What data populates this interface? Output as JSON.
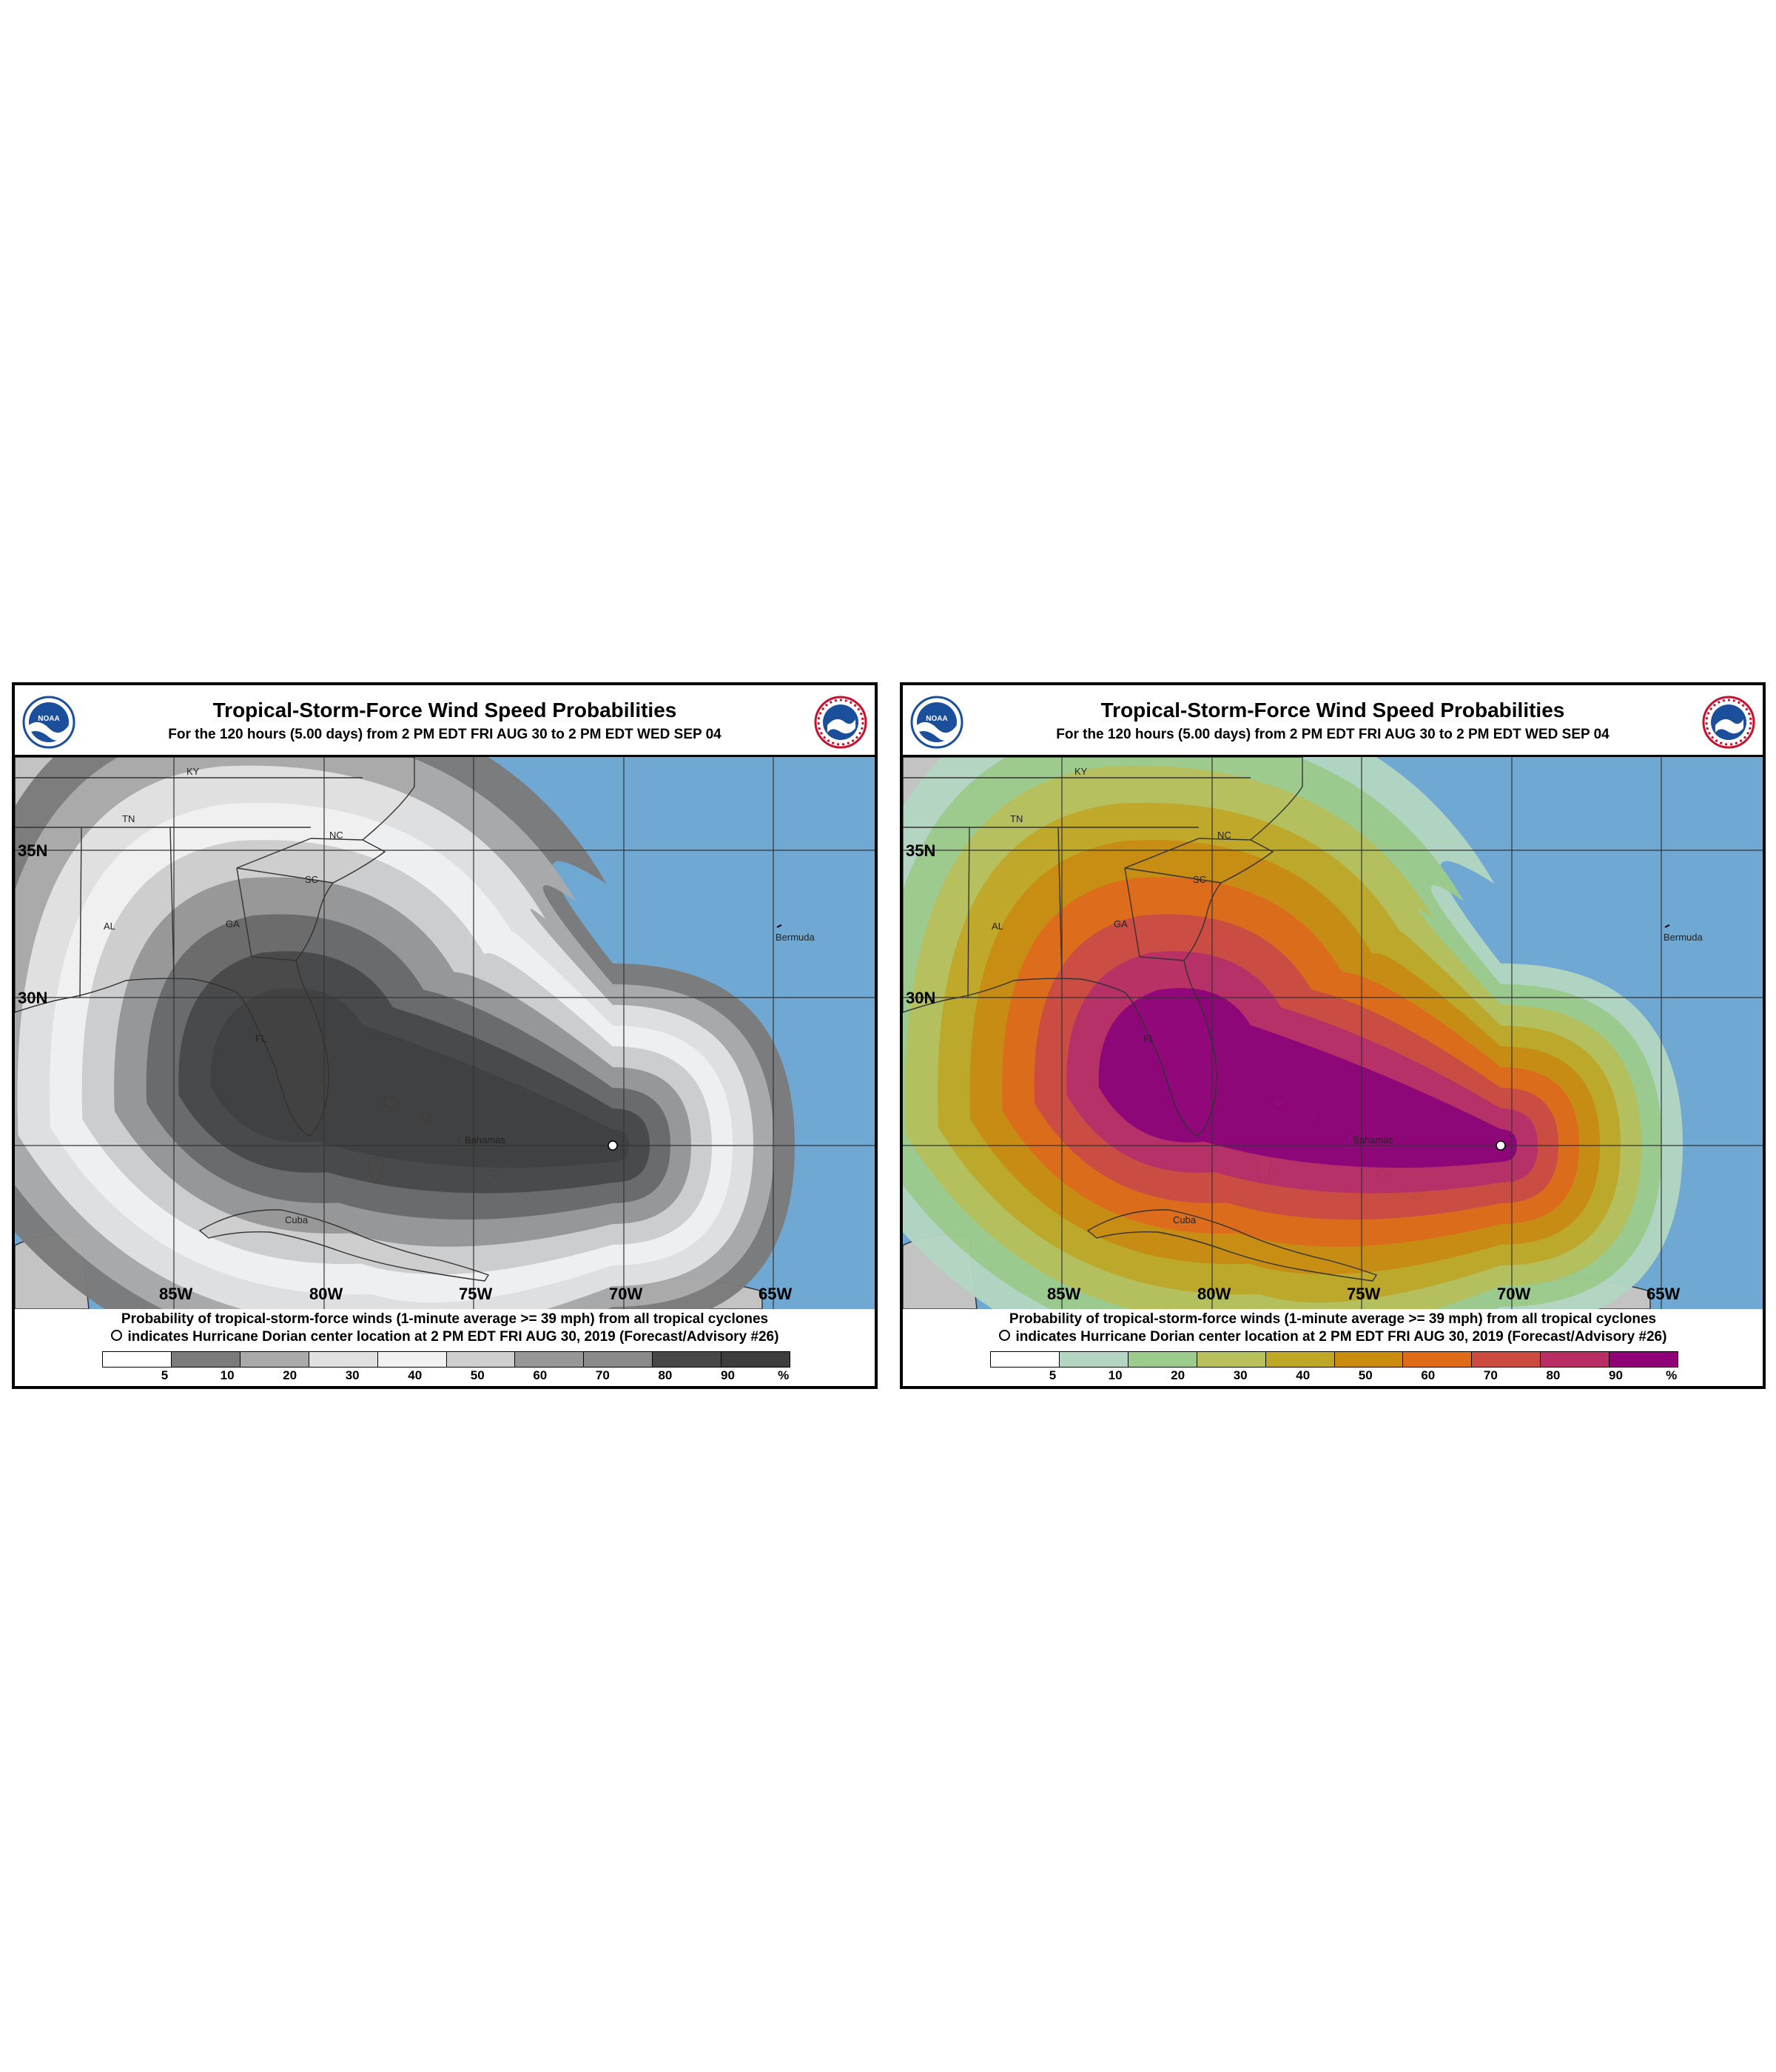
{
  "title": "Tropical-Storm-Force Wind Speed Probabilities",
  "subtitle": "For the 120 hours (5.00 days) from 2 PM EDT FRI AUG 30 to 2 PM EDT WED SEP 04",
  "legend_line1": "Probability of tropical-storm-force winds (1-minute average >= 39 mph) from all tropical cyclones",
  "legend_line2": "indicates Hurricane Dorian center location at 2 PM EDT FRI AUG 30, 2019 (Forecast/Advisory #26)",
  "scale_ticks": [
    "5",
    "10",
    "20",
    "30",
    "40",
    "50",
    "60",
    "70",
    "80",
    "90"
  ],
  "scale_unit": "%",
  "lat_labels": [
    "35N",
    "30N"
  ],
  "lon_labels": [
    "85W",
    "80W",
    "75W",
    "70W",
    "65W"
  ],
  "place_labels": {
    "ky": "KY",
    "tn": "TN",
    "nc": "NC",
    "sc": "SC",
    "ga": "GA",
    "al": "AL",
    "fl": "FL",
    "bahamas": "Bahamas",
    "cuba": "Cuba",
    "bermuda": "Bermuda"
  },
  "colors": {
    "ocean": "#6fa8d2",
    "land": "#c3c3c3",
    "border": "#333333"
  },
  "panels": [
    {
      "id": "left",
      "style": "grayscale",
      "bins": [
        "#ffffff",
        "#7b7b7b",
        "#aaaaaa",
        "#e1e1e1",
        "#f2f2f2",
        "#cfcfcf",
        "#979797",
        "#8a8a8a",
        "#474747",
        "#3e3e3e"
      ],
      "contours": [
        "#7b7b7b",
        "#aaaaaa",
        "#e1e1e1",
        "#f2f2f2",
        "#cfcfcf",
        "#979797",
        "#6a6a6a",
        "#474747",
        "#3e3e3e"
      ]
    },
    {
      "id": "right",
      "style": "color",
      "bins": [
        "#ffffff",
        "#b3d6c2",
        "#9ccc8c",
        "#b7c05b",
        "#bfa826",
        "#c98c0e",
        "#de6b17",
        "#cd4a3f",
        "#b82e64",
        "#8f0277"
      ],
      "contours": [
        "#b3d6c2",
        "#9ccc8c",
        "#b7c05b",
        "#bfa826",
        "#c98c0e",
        "#de6b17",
        "#cd4a3f",
        "#b82e64",
        "#8f0277"
      ]
    }
  ]
}
